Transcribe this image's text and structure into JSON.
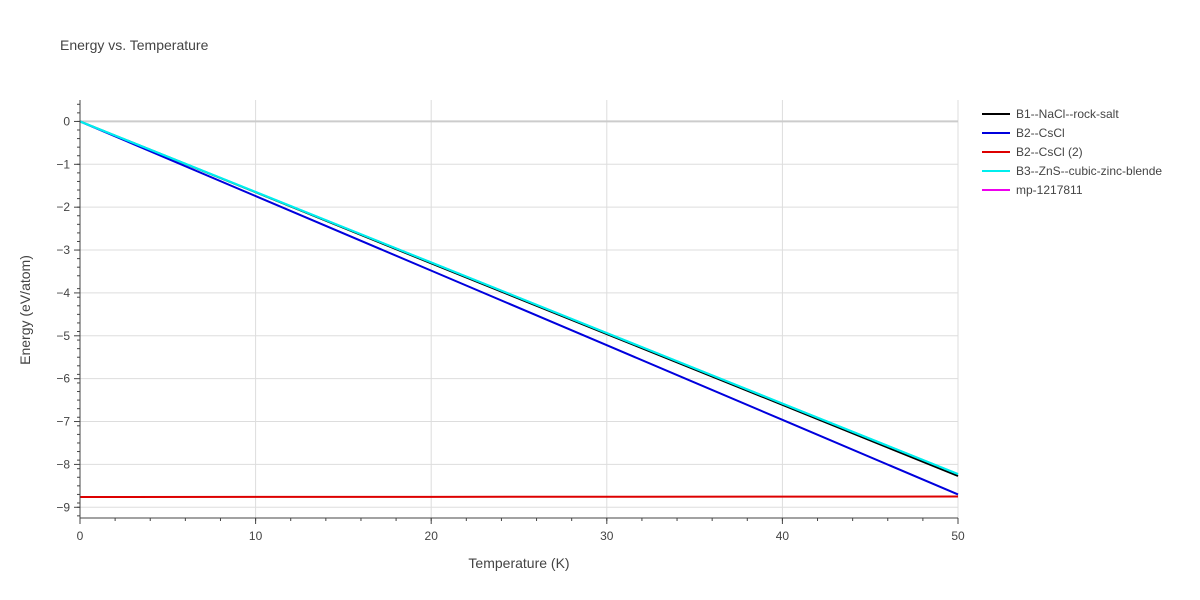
{
  "chart_data": {
    "type": "line",
    "title": "Energy vs. Temperature",
    "xlabel": "Temperature (K)",
    "ylabel": "Energy (eV/atom)",
    "xlim": [
      0,
      50
    ],
    "ylim": [
      -9.25,
      0.5
    ],
    "x_ticks": [
      0,
      10,
      20,
      30,
      40,
      50
    ],
    "x_tick_labels": [
      "0",
      "10",
      "20",
      "30",
      "40",
      "50"
    ],
    "y_ticks": [
      0,
      -1,
      -2,
      -3,
      -4,
      -5,
      -6,
      -7,
      -8,
      -9
    ],
    "y_tick_labels": [
      "0",
      "−1",
      "−2",
      "−3",
      "−4",
      "−5",
      "−6",
      "−7",
      "−8",
      "−9"
    ],
    "grid": true,
    "legend_position": "top-right",
    "series": [
      {
        "name": "B1--NaCl--rock-salt",
        "color": "#000000",
        "x": [
          0,
          10,
          20,
          30,
          40,
          50
        ],
        "y": [
          0,
          -1.65,
          -3.31,
          -4.96,
          -6.61,
          -8.27
        ]
      },
      {
        "name": "B2--CsCl",
        "color": "#0000dd",
        "x": [
          0,
          10,
          20,
          30,
          40,
          50
        ],
        "y": [
          0,
          -1.74,
          -3.48,
          -5.22,
          -6.96,
          -8.7
        ]
      },
      {
        "name": "B2--CsCl (2)",
        "color": "#dd0000",
        "x": [
          0,
          10,
          20,
          30,
          40,
          50
        ],
        "y": [
          -8.76,
          -8.758,
          -8.756,
          -8.754,
          -8.752,
          -8.75
        ]
      },
      {
        "name": "B3--ZnS--cubic-zinc-blende",
        "color": "#00eeee",
        "x": [
          0,
          10,
          20,
          30,
          40,
          50
        ],
        "y": [
          0,
          -1.645,
          -3.29,
          -4.935,
          -6.58,
          -8.225
        ]
      },
      {
        "name": "mp-1217811",
        "color": "#ee00ee",
        "x": [],
        "y": []
      }
    ]
  }
}
